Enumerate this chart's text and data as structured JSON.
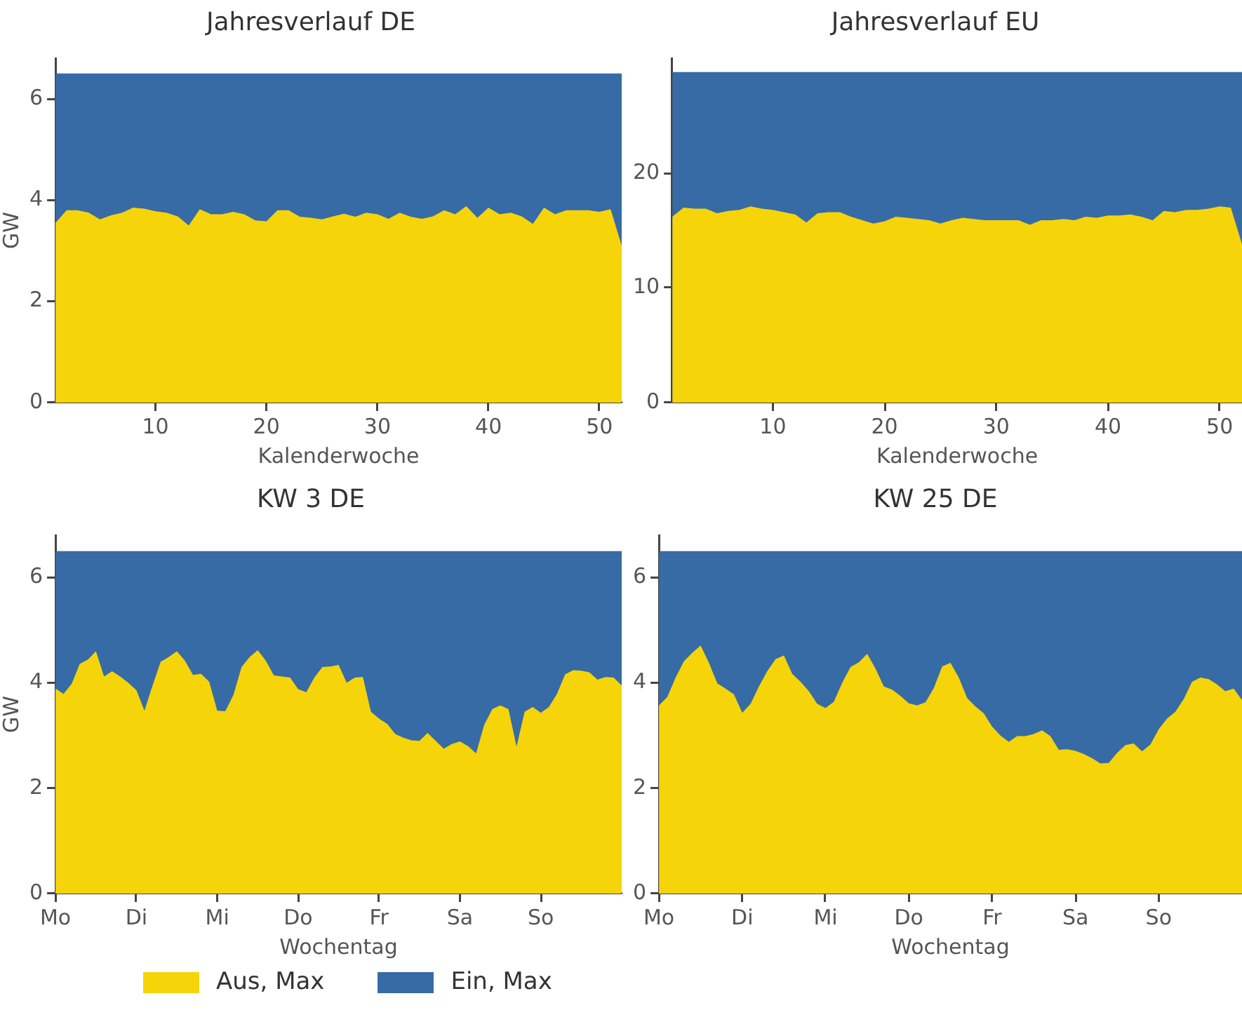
{
  "chart_data": [
    {
      "type": "area",
      "title": "Jahresverlauf DE",
      "xlabel": "Kalenderwoche",
      "ylabel": "GW",
      "xlim": [
        1,
        52
      ],
      "xticks": [
        10,
        20,
        30,
        40,
        50
      ],
      "ylim": [
        0,
        6.8
      ],
      "yticks": [
        0,
        2,
        4,
        6
      ],
      "grid": false,
      "legend": "bottom",
      "x": [
        1,
        2,
        3,
        4,
        5,
        6,
        7,
        8,
        9,
        10,
        11,
        12,
        13,
        14,
        15,
        16,
        17,
        18,
        19,
        20,
        21,
        22,
        23,
        24,
        25,
        26,
        27,
        28,
        29,
        30,
        31,
        32,
        33,
        34,
        35,
        36,
        37,
        38,
        39,
        40,
        41,
        42,
        43,
        44,
        45,
        46,
        47,
        48,
        49,
        50,
        51,
        52
      ],
      "series": [
        {
          "name": "Aus, Max",
          "color": "#f5d40a",
          "values": [
            3.55,
            3.8,
            3.8,
            3.75,
            3.62,
            3.7,
            3.75,
            3.85,
            3.83,
            3.78,
            3.75,
            3.68,
            3.5,
            3.82,
            3.72,
            3.72,
            3.77,
            3.72,
            3.6,
            3.58,
            3.8,
            3.8,
            3.67,
            3.65,
            3.62,
            3.68,
            3.73,
            3.67,
            3.75,
            3.72,
            3.63,
            3.75,
            3.67,
            3.63,
            3.68,
            3.8,
            3.72,
            3.88,
            3.65,
            3.85,
            3.72,
            3.75,
            3.68,
            3.53,
            3.85,
            3.72,
            3.8,
            3.8,
            3.8,
            3.77,
            3.82,
            3.1
          ]
        },
        {
          "name": "Ein, Max",
          "color": "#376ba5",
          "values": [
            6.5,
            6.5,
            6.5,
            6.5,
            6.5,
            6.5,
            6.5,
            6.5,
            6.5,
            6.5,
            6.5,
            6.5,
            6.5,
            6.5,
            6.5,
            6.5,
            6.5,
            6.5,
            6.5,
            6.5,
            6.5,
            6.5,
            6.5,
            6.5,
            6.5,
            6.5,
            6.5,
            6.5,
            6.5,
            6.5,
            6.5,
            6.5,
            6.5,
            6.5,
            6.5,
            6.5,
            6.5,
            6.5,
            6.5,
            6.5,
            6.5,
            6.5,
            6.5,
            6.5,
            6.5,
            6.5,
            6.5,
            6.5,
            6.5,
            6.5,
            6.5,
            6.5
          ]
        }
      ]
    },
    {
      "type": "area",
      "title": "Jahresverlauf EU",
      "xlabel": "Kalenderwoche",
      "xlim": [
        1,
        52
      ],
      "xticks": [
        10,
        20,
        30,
        40,
        50
      ],
      "ylim": [
        0,
        30
      ],
      "yticks": [
        0,
        10,
        20
      ],
      "grid": false,
      "x": [
        1,
        2,
        3,
        4,
        5,
        6,
        7,
        8,
        9,
        10,
        11,
        12,
        13,
        14,
        15,
        16,
        17,
        18,
        19,
        20,
        21,
        22,
        23,
        24,
        25,
        26,
        27,
        28,
        29,
        30,
        31,
        32,
        33,
        34,
        35,
        36,
        37,
        38,
        39,
        40,
        41,
        42,
        43,
        44,
        45,
        46,
        47,
        48,
        49,
        50,
        51,
        52
      ],
      "series": [
        {
          "color": "#f5d40a",
          "values": [
            16.2,
            17.0,
            16.9,
            16.9,
            16.5,
            16.7,
            16.8,
            17.1,
            16.9,
            16.8,
            16.6,
            16.4,
            15.7,
            16.5,
            16.6,
            16.6,
            16.2,
            15.9,
            15.6,
            15.8,
            16.2,
            16.1,
            16.0,
            15.9,
            15.6,
            15.9,
            16.1,
            16.0,
            15.9,
            15.9,
            15.9,
            15.9,
            15.5,
            15.9,
            15.9,
            16.0,
            15.9,
            16.2,
            16.1,
            16.3,
            16.3,
            16.4,
            16.2,
            15.9,
            16.7,
            16.6,
            16.8,
            16.8,
            16.9,
            17.1,
            17.0,
            13.8
          ]
        },
        {
          "color": "#376ba5",
          "values": [
            28.8,
            28.8,
            28.8,
            28.8,
            28.8,
            28.8,
            28.8,
            28.8,
            28.8,
            28.8,
            28.8,
            28.8,
            28.8,
            28.8,
            28.8,
            28.8,
            28.8,
            28.8,
            28.8,
            28.8,
            28.8,
            28.8,
            28.8,
            28.8,
            28.8,
            28.8,
            28.8,
            28.8,
            28.8,
            28.8,
            28.8,
            28.8,
            28.8,
            28.8,
            28.8,
            28.8,
            28.8,
            28.8,
            28.8,
            28.8,
            28.8,
            28.8,
            28.8,
            28.8,
            28.8,
            28.8,
            28.8,
            28.8,
            28.8,
            28.8,
            28.8,
            28.8
          ]
        }
      ]
    },
    {
      "type": "area",
      "title": "KW 3 DE",
      "xlabel": "Wochentag",
      "ylabel": "GW",
      "ylim": [
        0,
        6.8
      ],
      "yticks": [
        0,
        2,
        4,
        6
      ],
      "grid": false,
      "categories": [
        "Mo",
        null,
        null,
        null,
        null,
        null,
        null,
        null,
        null,
        null,
        "Di",
        null,
        null,
        null,
        null,
        null,
        null,
        null,
        null,
        null,
        "Mi",
        null,
        null,
        null,
        null,
        null,
        null,
        null,
        null,
        null,
        "Do",
        null,
        null,
        null,
        null,
        null,
        null,
        null,
        null,
        null,
        "Fr",
        null,
        null,
        null,
        null,
        null,
        null,
        null,
        null,
        null,
        "Sa",
        null,
        null,
        null,
        null,
        null,
        null,
        null,
        null,
        null,
        "So",
        null,
        null,
        null,
        null,
        null,
        null,
        null,
        null,
        null,
        null
      ],
      "series": [
        {
          "color": "#f5d40a",
          "values": [
            3.89,
            3.79,
            3.98,
            4.36,
            4.44,
            4.6,
            4.12,
            4.22,
            4.12,
            4.0,
            3.86,
            3.47,
            3.95,
            4.4,
            4.49,
            4.6,
            4.42,
            4.15,
            4.17,
            4.02,
            3.47,
            3.46,
            3.77,
            4.3,
            4.49,
            4.62,
            4.42,
            4.14,
            4.12,
            4.1,
            3.88,
            3.82,
            4.1,
            4.3,
            4.31,
            4.34,
            4.0,
            4.1,
            4.11,
            3.45,
            3.32,
            3.22,
            3.03,
            2.96,
            2.91,
            2.9,
            3.05,
            2.9,
            2.75,
            2.84,
            2.89,
            2.8,
            2.66,
            3.2,
            3.5,
            3.57,
            3.5,
            2.79,
            3.45,
            3.54,
            3.43,
            3.54,
            3.79,
            4.16,
            4.24,
            4.23,
            4.2,
            4.06,
            4.11,
            4.1,
            3.95
          ]
        },
        {
          "color": "#376ba5",
          "values": [
            6.5,
            6.5,
            6.5,
            6.5,
            6.5,
            6.5,
            6.5,
            6.5,
            6.5,
            6.5,
            6.5,
            6.5,
            6.5,
            6.5,
            6.5,
            6.5,
            6.5,
            6.5,
            6.5,
            6.5,
            6.5,
            6.5,
            6.5,
            6.5,
            6.5,
            6.5,
            6.5,
            6.5,
            6.5,
            6.5,
            6.5,
            6.5,
            6.5,
            6.5,
            6.5,
            6.5,
            6.5,
            6.5,
            6.5,
            6.5,
            6.5,
            6.5,
            6.5,
            6.5,
            6.5,
            6.5,
            6.5,
            6.5,
            6.5,
            6.5,
            6.5,
            6.5,
            6.5,
            6.5,
            6.5,
            6.5,
            6.5,
            6.5,
            6.5,
            6.5,
            6.5,
            6.5,
            6.5,
            6.5,
            6.5,
            6.5,
            6.5,
            6.5,
            6.5,
            6.5,
            6.5
          ]
        }
      ]
    },
    {
      "type": "area",
      "title": "KW 25 DE",
      "xlabel": "Wochentag",
      "ylim": [
        0,
        6.8
      ],
      "yticks": [
        0,
        2,
        4,
        6
      ],
      "grid": false,
      "categories": [
        "Mo",
        null,
        null,
        null,
        null,
        null,
        null,
        null,
        null,
        null,
        "Di",
        null,
        null,
        null,
        null,
        null,
        null,
        null,
        null,
        null,
        "Mi",
        null,
        null,
        null,
        null,
        null,
        null,
        null,
        null,
        null,
        "Do",
        null,
        null,
        null,
        null,
        null,
        null,
        null,
        null,
        null,
        "Fr",
        null,
        null,
        null,
        null,
        null,
        null,
        null,
        null,
        null,
        "Sa",
        null,
        null,
        null,
        null,
        null,
        null,
        null,
        null,
        null,
        "So",
        null,
        null,
        null,
        null,
        null,
        null,
        null,
        null,
        null,
        null
      ],
      "series": [
        {
          "color": "#f5d40a",
          "values": [
            3.57,
            3.73,
            4.1,
            4.41,
            4.57,
            4.71,
            4.38,
            3.99,
            3.89,
            3.78,
            3.43,
            3.6,
            3.93,
            4.22,
            4.45,
            4.52,
            4.17,
            4.02,
            3.84,
            3.6,
            3.52,
            3.64,
            4.0,
            4.3,
            4.39,
            4.55,
            4.27,
            3.93,
            3.87,
            3.75,
            3.61,
            3.57,
            3.63,
            3.9,
            4.31,
            4.38,
            4.1,
            3.71,
            3.55,
            3.42,
            3.17,
            3.0,
            2.88,
            2.99,
            2.99,
            3.03,
            3.1,
            2.99,
            2.73,
            2.74,
            2.71,
            2.65,
            2.57,
            2.47,
            2.48,
            2.67,
            2.82,
            2.85,
            2.7,
            2.83,
            3.12,
            3.32,
            3.45,
            3.69,
            4.02,
            4.1,
            4.07,
            3.97,
            3.84,
            3.89,
            3.67
          ]
        },
        {
          "color": "#376ba5",
          "values": [
            6.5,
            6.5,
            6.5,
            6.5,
            6.5,
            6.5,
            6.5,
            6.5,
            6.5,
            6.5,
            6.5,
            6.5,
            6.5,
            6.5,
            6.5,
            6.5,
            6.5,
            6.5,
            6.5,
            6.5,
            6.5,
            6.5,
            6.5,
            6.5,
            6.5,
            6.5,
            6.5,
            6.5,
            6.5,
            6.5,
            6.5,
            6.5,
            6.5,
            6.5,
            6.5,
            6.5,
            6.5,
            6.5,
            6.5,
            6.5,
            6.5,
            6.5,
            6.5,
            6.5,
            6.5,
            6.5,
            6.5,
            6.5,
            6.5,
            6.5,
            6.5,
            6.5,
            6.5,
            6.5,
            6.5,
            6.5,
            6.5,
            6.5,
            6.5,
            6.5,
            6.5,
            6.5,
            6.5,
            6.5,
            6.5,
            6.5,
            6.5,
            6.5,
            6.5,
            6.5,
            6.5
          ]
        }
      ]
    }
  ]
}
